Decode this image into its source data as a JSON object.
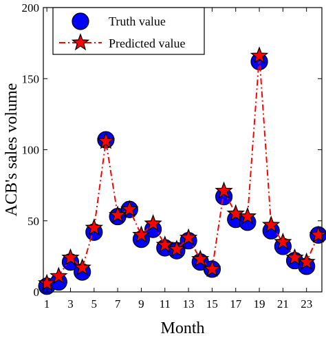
{
  "chart_data": {
    "type": "line",
    "title": "",
    "xlabel": "Month",
    "ylabel": "ACB's sales volume",
    "xlim": [
      0.7,
      24.3
    ],
    "ylim": [
      0,
      200
    ],
    "x_ticks": [
      "1",
      "3",
      "5",
      "7",
      "9",
      "11",
      "13",
      "15",
      "17",
      "19",
      "21",
      "23"
    ],
    "y_ticks": [
      "0",
      "50",
      "100",
      "150",
      "200"
    ],
    "grid": false,
    "legend_position": "top-left",
    "x": [
      1,
      2,
      3,
      4,
      5,
      6,
      7,
      8,
      9,
      10,
      11,
      12,
      13,
      14,
      15,
      16,
      17,
      18,
      19,
      20,
      21,
      22,
      23,
      24
    ],
    "series": [
      {
        "name": "Truth value",
        "marker": "circle",
        "color": "#0000ff",
        "values": [
          4,
          7,
          21,
          14,
          42,
          107,
          53,
          58,
          37,
          44,
          31,
          29,
          36,
          21,
          16,
          67,
          51,
          49,
          162,
          43,
          32,
          22,
          18,
          40
        ]
      },
      {
        "name": "Predicted value",
        "marker": "star",
        "line_style": "dash-dot",
        "color": "#ff0000",
        "values": [
          6,
          11,
          24,
          17,
          45,
          106,
          54,
          58,
          40,
          48,
          33,
          30,
          38,
          23,
          16,
          71,
          55,
          53,
          166,
          47,
          35,
          24,
          21,
          40
        ]
      }
    ]
  }
}
